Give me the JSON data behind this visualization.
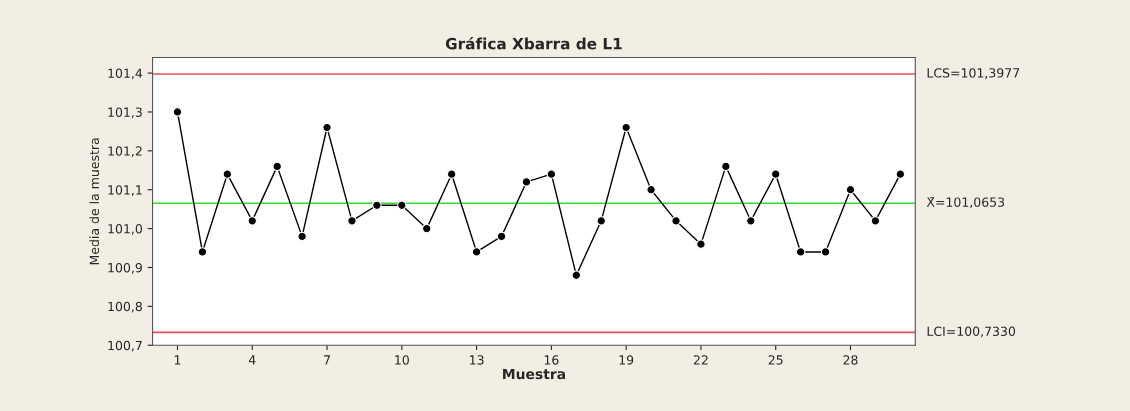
{
  "chart_data": {
    "type": "line",
    "title": "Gráfica Xbarra de L1",
    "xlabel": "Muestra",
    "ylabel": "Media de la muestra",
    "x": [
      1,
      2,
      3,
      4,
      5,
      6,
      7,
      8,
      9,
      10,
      11,
      12,
      13,
      14,
      15,
      16,
      17,
      18,
      19,
      20,
      21,
      22,
      23,
      24,
      25,
      26,
      27,
      28,
      29,
      30
    ],
    "series": [
      {
        "color": "#000000",
        "values": [
          101.3,
          100.94,
          101.14,
          101.02,
          101.16,
          100.98,
          101.26,
          101.02,
          101.06,
          101.06,
          101.0,
          101.14,
          100.94,
          100.98,
          101.12,
          101.14,
          100.88,
          101.02,
          101.26,
          101.1,
          101.02,
          100.96,
          101.16,
          101.02,
          101.14,
          100.94,
          100.94,
          101.1,
          101.02,
          101.14
        ]
      }
    ],
    "marker": "circle",
    "line_style": "solid",
    "grid": false,
    "legend": false,
    "xlim": [
      0,
      30.6
    ],
    "xticks": [
      1,
      4,
      7,
      10,
      13,
      16,
      19,
      22,
      25,
      28
    ],
    "ylim": [
      100.7,
      101.44
    ],
    "yticks": [
      {
        "value": 100.7,
        "label": "100,7"
      },
      {
        "value": 100.8,
        "label": "100,8"
      },
      {
        "value": 100.9,
        "label": "100,9"
      },
      {
        "value": 101.0,
        "label": "101,0"
      },
      {
        "value": 101.1,
        "label": "101,1"
      },
      {
        "value": 101.2,
        "label": "101,2"
      },
      {
        "value": 101.3,
        "label": "101,3"
      },
      {
        "value": 101.4,
        "label": "101,4"
      }
    ],
    "ref_lines": [
      {
        "axis": "y",
        "value": 101.3977,
        "label": "LCS=101,3977",
        "color": "#e8505a"
      },
      {
        "axis": "y",
        "value": 101.0653,
        "label": "X̄=101,0653",
        "color": "#33dd33"
      },
      {
        "axis": "y",
        "value": 100.733,
        "label": "LCI=100,7330",
        "color": "#e8505a"
      }
    ]
  }
}
